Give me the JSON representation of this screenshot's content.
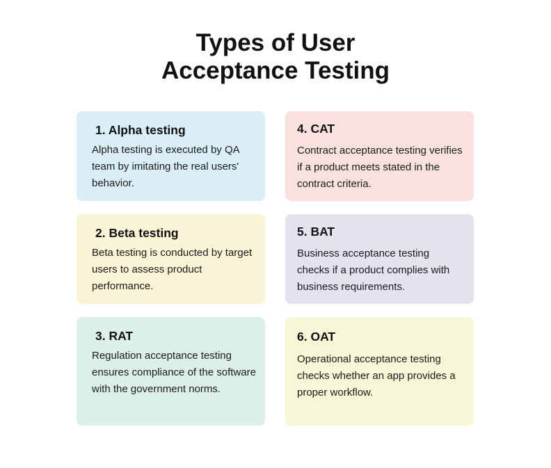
{
  "title": [
    "Types of User",
    "Acceptance Testing"
  ],
  "cards": [
    {
      "heading": "1. Alpha testing",
      "text": "Alpha testing is executed by QA team by imitating the real users' behavior.",
      "color": "#d9eef7"
    },
    {
      "heading": "2. Beta testing",
      "text": "Beta testing is conducted by target users to assess product performance.",
      "color": "#faf4d7"
    },
    {
      "heading": "3. RAT",
      "text": "Regulation acceptance testing ensures compliance of the software with the government norms.",
      "color": "#dcf0e8"
    },
    {
      "heading": "4. CAT",
      "text": "Contract acceptance testing verifies if a product meets stated in the contract criteria.",
      "color": "#f9e1de"
    },
    {
      "heading": "5. BAT",
      "text": "Business acceptance testing checks if a product complies with business requirements.",
      "color": "#e3e2ee"
    },
    {
      "heading": "6. OAT",
      "text": "Operational acceptance testing checks whether an app provides a proper workflow.",
      "color": "#f7f6d7"
    }
  ]
}
